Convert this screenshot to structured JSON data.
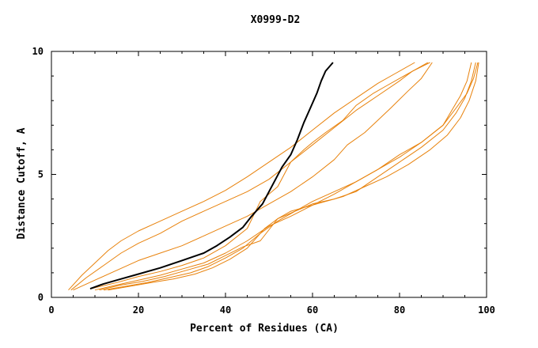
{
  "chart_data": {
    "type": "line",
    "title": "X0999-D2",
    "xlabel": "Percent of Residues (CA)",
    "ylabel": "Distance Cutoff, A",
    "xlim": [
      0,
      100
    ],
    "ylim": [
      0,
      10
    ],
    "xticks": [
      0,
      20,
      40,
      60,
      80,
      100
    ],
    "yticks": [
      0,
      5,
      10
    ],
    "grid": false,
    "legend": "none",
    "colors": {
      "highlight": "#000000",
      "others": "#e8820c"
    },
    "series": [
      {
        "highlight": true,
        "x": [
          8.9,
          12,
          16,
          20,
          25,
          30,
          35,
          38,
          41,
          44,
          46,
          48.5,
          50,
          51.5,
          53,
          55,
          56.5,
          58,
          59.5,
          61,
          62,
          63,
          64.7
        ],
        "y": [
          0.35,
          0.55,
          0.75,
          0.95,
          1.2,
          1.5,
          1.8,
          2.1,
          2.45,
          2.85,
          3.3,
          3.8,
          4.3,
          4.8,
          5.3,
          5.8,
          6.4,
          7.1,
          7.7,
          8.3,
          8.8,
          9.2,
          9.55
        ]
      },
      {
        "x": [
          3.9,
          7,
          10,
          13,
          16,
          20,
          25,
          30,
          35,
          40,
          45,
          50,
          55,
          60,
          65,
          70,
          75,
          79,
          83.5
        ],
        "y": [
          0.3,
          0.9,
          1.4,
          1.9,
          2.3,
          2.7,
          3.1,
          3.5,
          3.9,
          4.35,
          4.9,
          5.5,
          6.1,
          6.8,
          7.5,
          8.1,
          8.7,
          9.1,
          9.55
        ]
      },
      {
        "x": [
          4.5,
          8,
          12,
          16,
          20,
          25,
          30,
          35,
          40,
          45,
          50,
          55,
          60,
          65,
          70,
          75,
          80,
          83,
          87
        ],
        "y": [
          0.3,
          0.8,
          1.3,
          1.8,
          2.2,
          2.6,
          3.1,
          3.5,
          3.9,
          4.3,
          4.8,
          5.5,
          6.2,
          6.9,
          7.6,
          8.2,
          8.8,
          9.2,
          9.55
        ]
      },
      {
        "x": [
          5,
          10,
          15,
          20,
          25,
          30,
          35,
          40,
          45,
          50,
          55,
          60,
          65,
          68,
          72,
          75,
          78,
          82,
          85,
          87.5
        ],
        "y": [
          0.3,
          0.7,
          1.1,
          1.5,
          1.8,
          2.1,
          2.5,
          2.9,
          3.3,
          3.8,
          4.3,
          4.9,
          5.6,
          6.2,
          6.7,
          7.2,
          7.7,
          8.4,
          8.9,
          9.55
        ]
      },
      {
        "x": [
          9,
          15,
          20,
          25,
          30,
          35,
          40,
          45,
          48,
          52,
          55,
          58,
          60,
          63,
          67,
          70,
          74,
          77,
          80,
          83,
          86.5
        ],
        "y": [
          0.35,
          0.6,
          0.85,
          1.05,
          1.3,
          1.6,
          2.1,
          2.8,
          3.9,
          4.5,
          5.5,
          6.0,
          6.3,
          6.7,
          7.2,
          7.8,
          8.3,
          8.6,
          8.9,
          9.2,
          9.55
        ]
      },
      {
        "x": [
          10,
          15,
          20,
          25,
          30,
          35,
          40,
          45,
          50,
          55,
          60,
          65,
          70,
          75,
          80,
          85,
          90,
          92,
          94,
          95.5,
          96.5
        ],
        "y": [
          0.3,
          0.5,
          0.7,
          0.9,
          1.15,
          1.4,
          1.8,
          2.3,
          2.9,
          3.3,
          3.75,
          4.2,
          4.7,
          5.2,
          5.8,
          6.3,
          7.0,
          7.6,
          8.2,
          8.8,
          9.55
        ]
      },
      {
        "x": [
          11,
          16,
          21,
          26,
          31,
          36,
          40,
          44,
          48,
          52,
          56,
          60,
          65,
          70,
          75,
          80,
          85,
          90,
          93,
          95,
          96.5,
          97.5
        ],
        "y": [
          0.3,
          0.5,
          0.65,
          0.85,
          1.1,
          1.35,
          1.7,
          2.05,
          2.3,
          3.2,
          3.5,
          3.8,
          4.0,
          4.3,
          4.9,
          5.5,
          6.1,
          6.8,
          7.5,
          8.1,
          8.8,
          9.55
        ]
      },
      {
        "x": [
          12,
          17,
          22,
          27,
          32,
          36,
          40,
          44,
          48,
          52,
          56,
          60,
          65,
          70,
          75,
          80,
          85,
          90,
          93,
          95.5,
          97,
          98
        ],
        "y": [
          0.3,
          0.45,
          0.6,
          0.8,
          1.0,
          1.25,
          1.6,
          2.0,
          2.6,
          3.1,
          3.5,
          3.9,
          4.3,
          4.7,
          5.2,
          5.7,
          6.3,
          7.0,
          7.7,
          8.3,
          8.9,
          9.55
        ]
      },
      {
        "x": [
          13,
          18,
          23,
          28,
          33,
          37,
          41,
          45,
          49,
          52,
          55,
          59,
          63,
          67,
          72,
          77,
          82,
          87,
          91,
          94,
          96,
          97.5,
          98.2
        ],
        "y": [
          0.3,
          0.45,
          0.6,
          0.75,
          0.95,
          1.2,
          1.55,
          2.0,
          2.8,
          3.2,
          3.5,
          3.7,
          3.9,
          4.1,
          4.5,
          4.9,
          5.4,
          6.0,
          6.6,
          7.3,
          8.0,
          8.8,
          9.55
        ]
      }
    ]
  }
}
